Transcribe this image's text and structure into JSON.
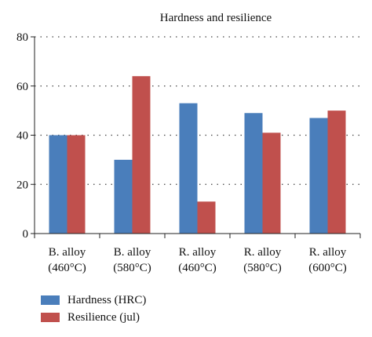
{
  "chart_data": {
    "type": "bar",
    "title": "Hardness and resilience",
    "categories": [
      [
        "B. alloy",
        "(460°C)"
      ],
      [
        "B. alloy",
        "(580°C)"
      ],
      [
        "R. alloy",
        "(460°C)"
      ],
      [
        "R. alloy",
        "(580°C)"
      ],
      [
        "R. alloy",
        "(600°C)"
      ]
    ],
    "series": [
      {
        "name": "Hardness (HRC)",
        "color": "#4a7ebb",
        "values": [
          40,
          30,
          53,
          49,
          47
        ]
      },
      {
        "name": "Resilience (jul)",
        "color": "#c0504d",
        "values": [
          40,
          64,
          13,
          41,
          50
        ]
      }
    ],
    "ylim": [
      0,
      80
    ],
    "yticks": [
      "0",
      "20",
      "40",
      "60",
      "80"
    ],
    "xlabel": "",
    "ylabel": "",
    "grid": "horizontal-dotted",
    "legend_position": "bottom-left"
  }
}
